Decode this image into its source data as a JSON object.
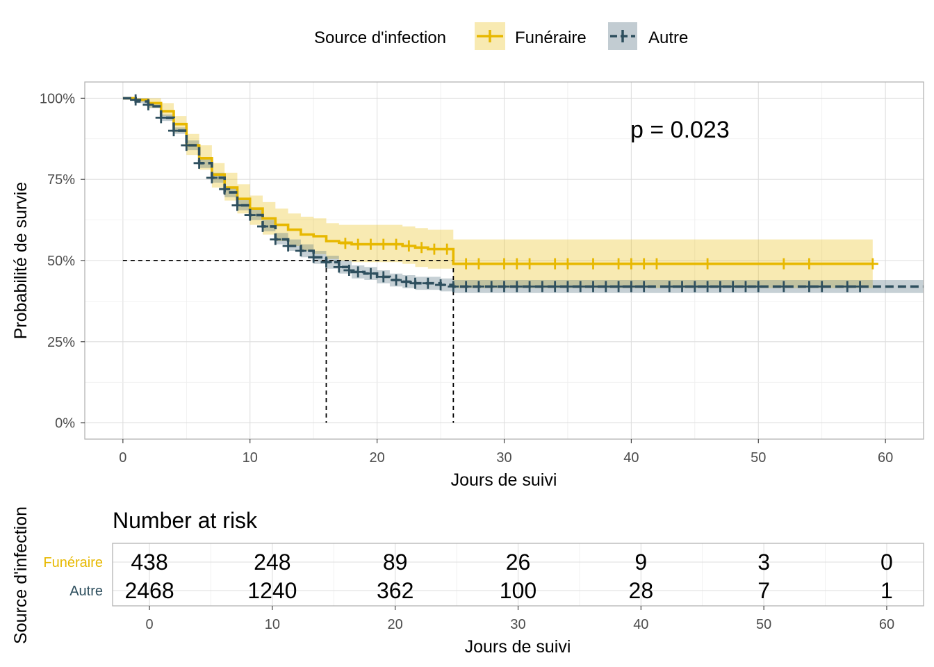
{
  "legend": {
    "title": "Source d'infection",
    "items": [
      {
        "label": "Funéraire",
        "color": "#E7B800"
      },
      {
        "label": "Autre",
        "color": "#2E4F5E"
      }
    ]
  },
  "chart_data": [
    {
      "type": "line",
      "chart": "kaplan-meier survival curve",
      "xlabel": "Jours de suivi",
      "ylabel": "Probabilité de survie",
      "xlim": [
        -3,
        63
      ],
      "ylim": [
        -0.05,
        1.05
      ],
      "x_ticks": [
        0,
        10,
        20,
        30,
        40,
        50,
        60
      ],
      "y_ticks": [
        0,
        0.25,
        0.5,
        0.75,
        1.0
      ],
      "y_tick_labels": [
        "0%",
        "25%",
        "50%",
        "75%",
        "100%"
      ],
      "grid": true,
      "legend_position": "top",
      "annotation": "p = 0.023",
      "median_lines": [
        {
          "x": 16,
          "y": 0.5
        },
        {
          "x": 26,
          "y": 0.5
        }
      ],
      "series": [
        {
          "name": "Funéraire",
          "color": "#E7B800",
          "band_color": "#E7B800",
          "line_style": "solid",
          "steps": [
            [
              0,
              1.0
            ],
            [
              1,
              0.995
            ],
            [
              2,
              0.985
            ],
            [
              3,
              0.96
            ],
            [
              4,
              0.92
            ],
            [
              5,
              0.855
            ],
            [
              6,
              0.815
            ],
            [
              7,
              0.765
            ],
            [
              8,
              0.725
            ],
            [
              9,
              0.69
            ],
            [
              10,
              0.66
            ],
            [
              11,
              0.63
            ],
            [
              12,
              0.61
            ],
            [
              13,
              0.595
            ],
            [
              14,
              0.58
            ],
            [
              15,
              0.575
            ],
            [
              16,
              0.56
            ],
            [
              17,
              0.555
            ],
            [
              18,
              0.55
            ],
            [
              22,
              0.545
            ],
            [
              23,
              0.54
            ],
            [
              24,
              0.535
            ],
            [
              26,
              0.49
            ],
            [
              59,
              0.49
            ]
          ],
          "lower": [
            [
              0,
              1.0
            ],
            [
              1,
              0.99
            ],
            [
              2,
              0.97
            ],
            [
              3,
              0.945
            ],
            [
              4,
              0.895
            ],
            [
              5,
              0.825
            ],
            [
              6,
              0.78
            ],
            [
              7,
              0.725
            ],
            [
              8,
              0.685
            ],
            [
              9,
              0.645
            ],
            [
              10,
              0.61
            ],
            [
              11,
              0.58
            ],
            [
              12,
              0.56
            ],
            [
              13,
              0.545
            ],
            [
              14,
              0.53
            ],
            [
              15,
              0.52
            ],
            [
              16,
              0.505
            ],
            [
              17,
              0.5
            ],
            [
              18,
              0.495
            ],
            [
              22,
              0.49
            ],
            [
              23,
              0.48
            ],
            [
              24,
              0.475
            ],
            [
              26,
              0.415
            ],
            [
              59,
              0.415
            ]
          ],
          "upper": [
            [
              0,
              1.0
            ],
            [
              1,
              1.0
            ],
            [
              2,
              1.0
            ],
            [
              3,
              0.985
            ],
            [
              4,
              0.945
            ],
            [
              5,
              0.89
            ],
            [
              6,
              0.855
            ],
            [
              7,
              0.8
            ],
            [
              8,
              0.77
            ],
            [
              9,
              0.735
            ],
            [
              10,
              0.7
            ],
            [
              11,
              0.68
            ],
            [
              12,
              0.66
            ],
            [
              13,
              0.645
            ],
            [
              14,
              0.635
            ],
            [
              15,
              0.63
            ],
            [
              16,
              0.615
            ],
            [
              17,
              0.61
            ],
            [
              18,
              0.61
            ],
            [
              22,
              0.605
            ],
            [
              23,
              0.6
            ],
            [
              24,
              0.595
            ],
            [
              26,
              0.565
            ],
            [
              59,
              0.565
            ]
          ],
          "censors": [
            [
              17.5,
              0.553
            ],
            [
              18.5,
              0.55
            ],
            [
              19.5,
              0.55
            ],
            [
              20.5,
              0.55
            ],
            [
              21.5,
              0.55
            ],
            [
              22.5,
              0.545
            ],
            [
              23.5,
              0.54
            ],
            [
              24.5,
              0.535
            ],
            [
              25.5,
              0.535
            ],
            [
              27,
              0.49
            ],
            [
              28,
              0.49
            ],
            [
              30,
              0.49
            ],
            [
              31,
              0.49
            ],
            [
              32,
              0.49
            ],
            [
              34,
              0.49
            ],
            [
              35,
              0.49
            ],
            [
              37,
              0.49
            ],
            [
              39,
              0.49
            ],
            [
              40,
              0.49
            ],
            [
              41,
              0.49
            ],
            [
              42,
              0.49
            ],
            [
              46,
              0.49
            ],
            [
              52,
              0.49
            ],
            [
              54,
              0.49
            ],
            [
              59,
              0.49
            ]
          ]
        },
        {
          "name": "Autre",
          "color": "#2E4F5E",
          "band_color": "#4F6E7D",
          "line_style": "dashed",
          "steps": [
            [
              0,
              1.0
            ],
            [
              1,
              0.99
            ],
            [
              2,
              0.975
            ],
            [
              3,
              0.94
            ],
            [
              4,
              0.9
            ],
            [
              5,
              0.855
            ],
            [
              6,
              0.8
            ],
            [
              7,
              0.755
            ],
            [
              8,
              0.71
            ],
            [
              9,
              0.67
            ],
            [
              10,
              0.64
            ],
            [
              11,
              0.605
            ],
            [
              12,
              0.565
            ],
            [
              13,
              0.545
            ],
            [
              14,
              0.53
            ],
            [
              15,
              0.51
            ],
            [
              16,
              0.495
            ],
            [
              17,
              0.48
            ],
            [
              18,
              0.465
            ],
            [
              19,
              0.46
            ],
            [
              20,
              0.45
            ],
            [
              21,
              0.44
            ],
            [
              22,
              0.435
            ],
            [
              23,
              0.43
            ],
            [
              25,
              0.425
            ],
            [
              26,
              0.42
            ],
            [
              63,
              0.42
            ]
          ],
          "lower": [
            [
              0,
              1.0
            ],
            [
              1,
              0.985
            ],
            [
              2,
              0.97
            ],
            [
              3,
              0.93
            ],
            [
              4,
              0.89
            ],
            [
              5,
              0.84
            ],
            [
              6,
              0.785
            ],
            [
              7,
              0.74
            ],
            [
              8,
              0.695
            ],
            [
              9,
              0.655
            ],
            [
              10,
              0.625
            ],
            [
              11,
              0.59
            ],
            [
              12,
              0.55
            ],
            [
              13,
              0.53
            ],
            [
              14,
              0.51
            ],
            [
              15,
              0.49
            ],
            [
              16,
              0.475
            ],
            [
              17,
              0.46
            ],
            [
              18,
              0.445
            ],
            [
              19,
              0.44
            ],
            [
              20,
              0.43
            ],
            [
              21,
              0.42
            ],
            [
              22,
              0.415
            ],
            [
              23,
              0.41
            ],
            [
              25,
              0.405
            ],
            [
              26,
              0.4
            ],
            [
              63,
              0.4
            ]
          ],
          "upper": [
            [
              0,
              1.0
            ],
            [
              1,
              1.0
            ],
            [
              2,
              0.985
            ],
            [
              3,
              0.95
            ],
            [
              4,
              0.91
            ],
            [
              5,
              0.87
            ],
            [
              6,
              0.815
            ],
            [
              7,
              0.77
            ],
            [
              8,
              0.725
            ],
            [
              9,
              0.69
            ],
            [
              10,
              0.66
            ],
            [
              11,
              0.625
            ],
            [
              12,
              0.585
            ],
            [
              13,
              0.565
            ],
            [
              14,
              0.55
            ],
            [
              15,
              0.53
            ],
            [
              16,
              0.515
            ],
            [
              17,
              0.5
            ],
            [
              18,
              0.485
            ],
            [
              19,
              0.48
            ],
            [
              20,
              0.47
            ],
            [
              21,
              0.46
            ],
            [
              22,
              0.455
            ],
            [
              23,
              0.45
            ],
            [
              25,
              0.445
            ],
            [
              26,
              0.44
            ],
            [
              63,
              0.44
            ]
          ],
          "censors": [
            [
              1,
              0.995
            ],
            [
              2,
              0.98
            ],
            [
              3,
              0.94
            ],
            [
              4,
              0.9
            ],
            [
              5,
              0.855
            ],
            [
              6,
              0.8
            ],
            [
              7,
              0.755
            ],
            [
              8,
              0.72
            ],
            [
              9,
              0.67
            ],
            [
              10,
              0.64
            ],
            [
              11,
              0.605
            ],
            [
              12,
              0.565
            ],
            [
              13,
              0.545
            ],
            [
              14,
              0.53
            ],
            [
              15,
              0.51
            ],
            [
              16,
              0.495
            ],
            [
              17,
              0.48
            ],
            [
              17.8,
              0.47
            ],
            [
              18.5,
              0.465
            ],
            [
              19.5,
              0.46
            ],
            [
              20.5,
              0.45
            ],
            [
              21.5,
              0.44
            ],
            [
              22.3,
              0.435
            ],
            [
              23,
              0.43
            ],
            [
              24,
              0.43
            ],
            [
              25,
              0.425
            ],
            [
              26,
              0.42
            ],
            [
              27,
              0.42
            ],
            [
              28,
              0.42
            ],
            [
              29,
              0.42
            ],
            [
              30,
              0.42
            ],
            [
              31,
              0.42
            ],
            [
              32,
              0.42
            ],
            [
              33,
              0.42
            ],
            [
              34,
              0.42
            ],
            [
              35,
              0.42
            ],
            [
              36,
              0.42
            ],
            [
              37,
              0.42
            ],
            [
              38,
              0.42
            ],
            [
              39,
              0.42
            ],
            [
              40,
              0.42
            ],
            [
              41,
              0.42
            ],
            [
              43,
              0.42
            ],
            [
              44,
              0.42
            ],
            [
              45,
              0.42
            ],
            [
              46,
              0.42
            ],
            [
              47,
              0.42
            ],
            [
              48,
              0.42
            ],
            [
              49,
              0.42
            ],
            [
              50,
              0.42
            ],
            [
              52,
              0.42
            ],
            [
              54,
              0.42
            ],
            [
              55,
              0.42
            ],
            [
              57,
              0.42
            ],
            [
              58,
              0.42
            ]
          ]
        }
      ]
    },
    {
      "type": "table",
      "title": "Number at risk",
      "xlabel": "Jours de suivi",
      "ylabel": "Source d'infection",
      "xlim": [
        -3,
        63
      ],
      "x_ticks": [
        0,
        10,
        20,
        30,
        40,
        50,
        60
      ],
      "rows": [
        {
          "name": "Funéraire",
          "color": "#E7B800",
          "values": [
            "438",
            "248",
            "89",
            "26",
            "9",
            "3",
            "0"
          ]
        },
        {
          "name": "Autre",
          "color": "#2E4F5E",
          "values": [
            "2468",
            "1240",
            "362",
            "100",
            "28",
            "7",
            "1"
          ]
        }
      ]
    }
  ]
}
